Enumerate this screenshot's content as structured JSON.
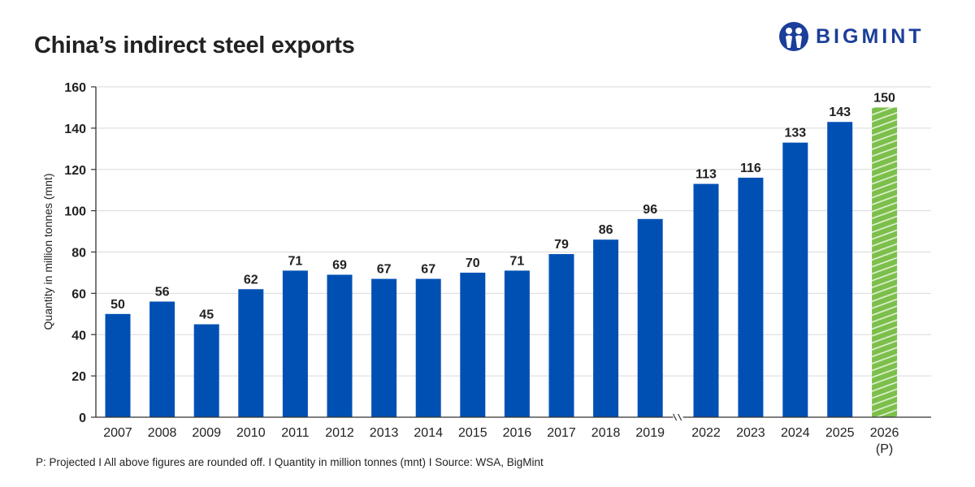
{
  "title": "China’s indirect steel exports",
  "logo": {
    "text": "BIGMINT",
    "color": "#1a3e9a"
  },
  "footnote": "P: Projected  I  All above figures are rounded off.  I  Quantity in million tonnes (mnt)  I  Source: WSA, BigMint",
  "chart_data": {
    "type": "bar",
    "title": "China’s indirect steel exports",
    "ylabel": "Quantity in million tonnes (mnt)",
    "xlabel": "",
    "ylim": [
      0,
      160
    ],
    "yticks": [
      0,
      20,
      40,
      60,
      80,
      100,
      120,
      140,
      160
    ],
    "grid": true,
    "axis_break_after": "2019",
    "categories": [
      "2007",
      "2008",
      "2009",
      "2010",
      "2011",
      "2012",
      "2013",
      "2014",
      "2015",
      "2016",
      "2017",
      "2018",
      "2019",
      "2022",
      "2023",
      "2024",
      "2025",
      "2026"
    ],
    "category_sublabels": {
      "2026": "(P)"
    },
    "values": [
      50,
      56,
      45,
      62,
      71,
      69,
      67,
      67,
      70,
      71,
      79,
      86,
      96,
      113,
      116,
      133,
      143,
      150
    ],
    "projected": [
      "2026"
    ],
    "colors": {
      "actual": "#0050b4",
      "projected": "#7cbf4a",
      "grid": "#d9d9d9",
      "axis": "#333333"
    }
  }
}
